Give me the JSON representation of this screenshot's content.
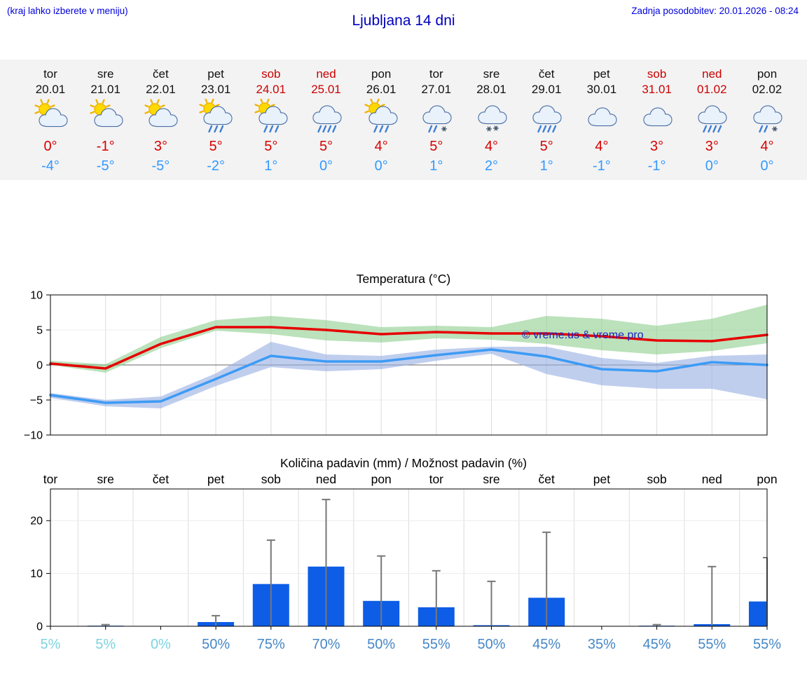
{
  "header": {
    "menu_hint": "(kraj lahko izberete v meniju)",
    "title": "Ljubljana 14 dni",
    "last_update": "Zadnja posodobitev: 20.01.2026 - 08:24"
  },
  "colors": {
    "link_blue": "#0000dd",
    "title_blue": "#0000bb",
    "weekend_red": "#cc0000",
    "temp_high_red": "#d80000",
    "temp_low_blue": "#3399ff",
    "bar_blue": "#0d5de6",
    "whisker_gray": "#777777",
    "percent_muted": "#7dd4e0",
    "percent_normal": "#4587c7",
    "watermark_blue": "#2020c0",
    "strip_background": "#f3f3f3"
  },
  "days": [
    {
      "name": "tor",
      "date": "20.01",
      "weekend": false,
      "icon": "sun-cloud",
      "high": "0°",
      "low": "-4°"
    },
    {
      "name": "sre",
      "date": "21.01",
      "weekend": false,
      "icon": "sun-cloud",
      "high": "-1°",
      "low": "-5°"
    },
    {
      "name": "čet",
      "date": "22.01",
      "weekend": false,
      "icon": "sun-cloud",
      "high": "3°",
      "low": "-5°"
    },
    {
      "name": "pet",
      "date": "23.01",
      "weekend": false,
      "icon": "sun-cloud-rain",
      "high": "5°",
      "low": "-2°"
    },
    {
      "name": "sob",
      "date": "24.01",
      "weekend": true,
      "icon": "sun-cloud-rain",
      "high": "5°",
      "low": "1°"
    },
    {
      "name": "ned",
      "date": "25.01",
      "weekend": true,
      "icon": "cloud-rain",
      "high": "5°",
      "low": "0°"
    },
    {
      "name": "pon",
      "date": "26.01",
      "weekend": false,
      "icon": "sun-cloud-rain",
      "high": "4°",
      "low": "0°"
    },
    {
      "name": "tor",
      "date": "27.01",
      "weekend": false,
      "icon": "cloud-rain-snow",
      "high": "5°",
      "low": "1°"
    },
    {
      "name": "sre",
      "date": "28.01",
      "weekend": false,
      "icon": "cloud-snow",
      "high": "4°",
      "low": "2°"
    },
    {
      "name": "čet",
      "date": "29.01",
      "weekend": false,
      "icon": "cloud-rain",
      "high": "5°",
      "low": "1°"
    },
    {
      "name": "pet",
      "date": "30.01",
      "weekend": false,
      "icon": "cloud",
      "high": "4°",
      "low": "-1°"
    },
    {
      "name": "sob",
      "date": "31.01",
      "weekend": true,
      "icon": "cloud",
      "high": "3°",
      "low": "-1°"
    },
    {
      "name": "ned",
      "date": "01.02",
      "weekend": true,
      "icon": "cloud-rain",
      "high": "3°",
      "low": "0°"
    },
    {
      "name": "pon",
      "date": "02.02",
      "weekend": false,
      "icon": "cloud-rain-snow",
      "high": "4°",
      "low": "0°"
    }
  ],
  "chart_data": [
    {
      "type": "line",
      "title": "Temperatura (°C)",
      "x_count": 14,
      "ylim": [
        -10,
        10
      ],
      "yticks": [
        10,
        5,
        0,
        -5,
        -10
      ],
      "grid": true,
      "watermark": "© vreme.us & vreme.pro",
      "series": [
        {
          "name": "max-temperature",
          "color": "#e60000",
          "band_color": "#8ecf8e",
          "values": [
            0.2,
            -0.5,
            3.0,
            5.4,
            5.4,
            5.0,
            4.4,
            4.7,
            4.5,
            4.5,
            4.1,
            3.5,
            3.4,
            4.3
          ],
          "band_upper": [
            0.6,
            0.1,
            4.0,
            6.4,
            7.0,
            6.4,
            5.4,
            5.6,
            5.4,
            7.0,
            6.6,
            5.6,
            6.6,
            8.6
          ],
          "band_lower": [
            0.0,
            -1.1,
            2.4,
            4.9,
            4.4,
            3.5,
            3.2,
            3.8,
            3.6,
            3.0,
            2.1,
            1.5,
            2.0,
            3.1
          ]
        },
        {
          "name": "min-temperature",
          "color": "#3d9bf5",
          "band_color": "#96aee3",
          "values": [
            -4.3,
            -5.4,
            -5.2,
            -2.0,
            1.3,
            0.5,
            0.5,
            1.4,
            2.2,
            1.2,
            -0.6,
            -0.9,
            0.4,
            0.0
          ],
          "band_upper": [
            -4.0,
            -5.0,
            -4.5,
            -1.2,
            3.3,
            1.5,
            1.3,
            2.2,
            2.6,
            2.6,
            1.0,
            0.3,
            1.3,
            1.5
          ],
          "band_lower": [
            -4.7,
            -5.9,
            -6.2,
            -3.0,
            -0.3,
            -0.9,
            -0.6,
            0.6,
            1.6,
            -1.3,
            -2.9,
            -3.4,
            -3.4,
            -4.9
          ]
        }
      ]
    },
    {
      "type": "bar",
      "title": "Količina padavin (mm) / Možnost padavin (%)",
      "categories": [
        "tor",
        "sre",
        "čet",
        "pet",
        "sob",
        "ned",
        "pon",
        "tor",
        "sre",
        "čet",
        "pet",
        "sob",
        "ned",
        "pon"
      ],
      "ylim": [
        0,
        26
      ],
      "yticks": [
        0,
        10,
        20
      ],
      "values": [
        0,
        0.1,
        0,
        0.8,
        8.0,
        11.3,
        4.8,
        3.6,
        0.2,
        5.4,
        0,
        0.1,
        0.4,
        4.7
      ],
      "whisker_max": [
        0,
        0.3,
        0,
        2.0,
        16.3,
        24.0,
        13.3,
        10.5,
        8.5,
        17.8,
        0,
        0.3,
        11.3,
        13.0
      ],
      "percentages": [
        {
          "label": "5%",
          "muted": true
        },
        {
          "label": "5%",
          "muted": true
        },
        {
          "label": "0%",
          "muted": true
        },
        {
          "label": "50%",
          "muted": false
        },
        {
          "label": "75%",
          "muted": false
        },
        {
          "label": "70%",
          "muted": false
        },
        {
          "label": "50%",
          "muted": false
        },
        {
          "label": "55%",
          "muted": false
        },
        {
          "label": "50%",
          "muted": false
        },
        {
          "label": "45%",
          "muted": false
        },
        {
          "label": "35%",
          "muted": false
        },
        {
          "label": "45%",
          "muted": false
        },
        {
          "label": "55%",
          "muted": false
        },
        {
          "label": "55%",
          "muted": false
        }
      ]
    }
  ]
}
